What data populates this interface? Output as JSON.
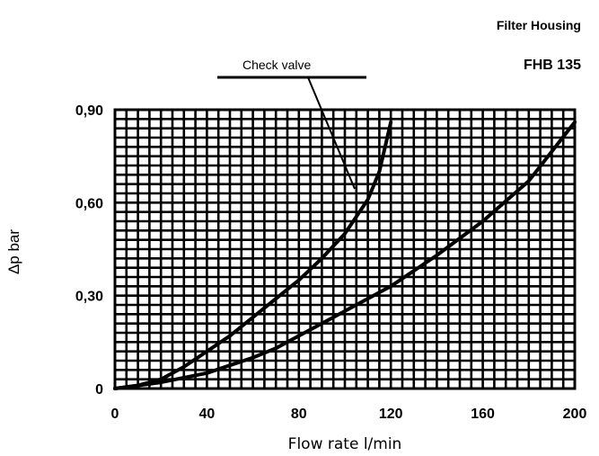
{
  "header": {
    "title": "Filter Housing",
    "model": "FHB 135"
  },
  "chart_data": {
    "type": "line",
    "xlabel": "Flow rate l/min",
    "ylabel": "Δp bar",
    "xlim": [
      0,
      200
    ],
    "ylim": [
      0,
      0.9
    ],
    "x_ticks": [
      {
        "value": 0,
        "label": "0"
      },
      {
        "value": 40,
        "label": "40"
      },
      {
        "value": 80,
        "label": "80"
      },
      {
        "value": 120,
        "label": "120"
      },
      {
        "value": 160,
        "label": "160"
      },
      {
        "value": 200,
        "label": "200"
      }
    ],
    "y_ticks": [
      {
        "value": 0,
        "label": "0"
      },
      {
        "value": 0.3,
        "label": "0,30"
      },
      {
        "value": 0.6,
        "label": "0,60"
      },
      {
        "value": 0.9,
        "label": "0,90"
      }
    ],
    "grid": true,
    "annotation": "Check valve",
    "series": [
      {
        "points": [
          [
            0,
            0
          ],
          [
            10,
            0.01
          ],
          [
            20,
            0.03
          ],
          [
            30,
            0.07
          ],
          [
            40,
            0.12
          ],
          [
            50,
            0.17
          ],
          [
            60,
            0.23
          ],
          [
            70,
            0.29
          ],
          [
            80,
            0.35
          ],
          [
            90,
            0.42
          ],
          [
            100,
            0.5
          ],
          [
            110,
            0.61
          ],
          [
            115,
            0.7
          ],
          [
            120,
            0.86
          ]
        ]
      },
      {
        "points": [
          [
            0,
            0
          ],
          [
            20,
            0.02
          ],
          [
            40,
            0.05
          ],
          [
            60,
            0.1
          ],
          [
            70,
            0.13
          ],
          [
            80,
            0.17
          ],
          [
            100,
            0.25
          ],
          [
            120,
            0.33
          ],
          [
            140,
            0.43
          ],
          [
            160,
            0.54
          ],
          [
            180,
            0.67
          ],
          [
            200,
            0.86
          ]
        ]
      }
    ]
  }
}
